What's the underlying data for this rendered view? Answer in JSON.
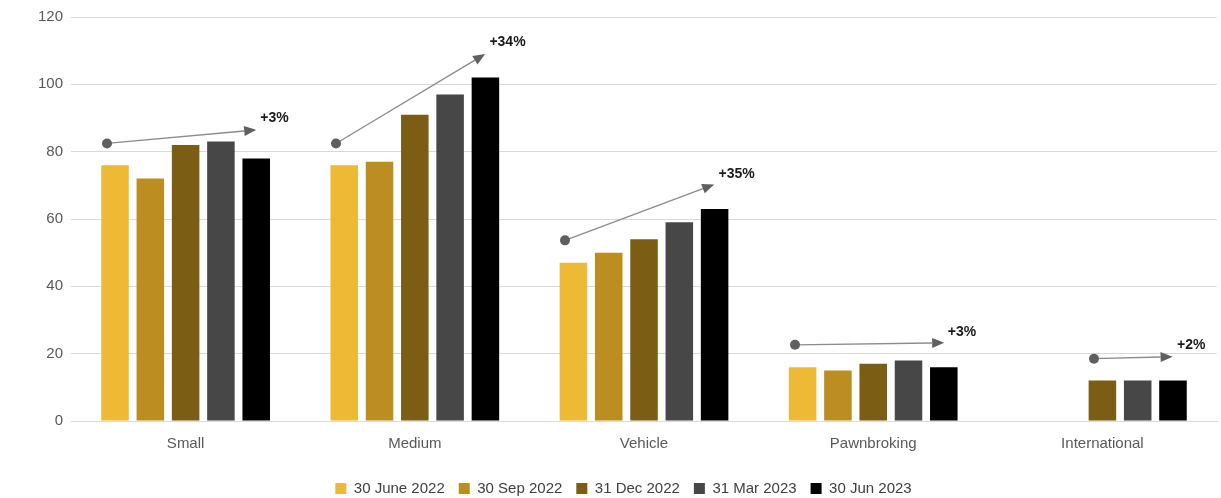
{
  "chart_data": {
    "type": "bar",
    "categories": [
      "Small",
      "Medium",
      "Vehicle",
      "Pawnbroking",
      "International"
    ],
    "series": [
      {
        "name": "30 June 2022",
        "color": "#eeb935",
        "values": [
          76,
          76,
          47,
          16,
          null
        ]
      },
      {
        "name": "30 Sep 2022",
        "color": "#bc8e22",
        "values": [
          72,
          77,
          50,
          15,
          null
        ]
      },
      {
        "name": "31 Dec 2022",
        "color": "#7b5d13",
        "values": [
          82,
          91,
          54,
          17,
          12
        ]
      },
      {
        "name": "31 Mar 2023",
        "color": "#474747",
        "values": [
          83,
          97,
          59,
          18,
          12
        ]
      },
      {
        "name": "30 Jun 2023",
        "color": "#000000",
        "values": [
          78,
          102,
          63,
          16,
          12
        ]
      }
    ],
    "ylim": [
      0,
      120
    ],
    "yticks": [
      0,
      20,
      40,
      60,
      80,
      100,
      120
    ],
    "grid": "y",
    "legend": "bottom",
    "annotations": [
      "+3%",
      "+34%",
      "+35%",
      "+3%",
      "+2%"
    ]
  }
}
